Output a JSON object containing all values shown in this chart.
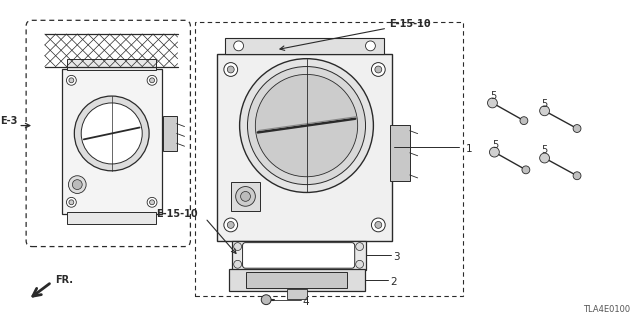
{
  "background_color": "#ffffff",
  "figsize": [
    6.4,
    3.2
  ],
  "dpi": 100,
  "labels": {
    "E3": "E-3",
    "E1510a": "E-15-10",
    "E1510b": "E-15-10",
    "part1": "1",
    "part2": "2",
    "part3": "3",
    "part4": "4",
    "part5": "5",
    "FR": "FR.",
    "code": "TLA4E0100"
  },
  "lc": "#2a2a2a",
  "tc": "#2a2a2a",
  "gray1": "#cccccc",
  "gray2": "#aaaaaa",
  "gray3": "#888888",
  "white": "#ffffff"
}
